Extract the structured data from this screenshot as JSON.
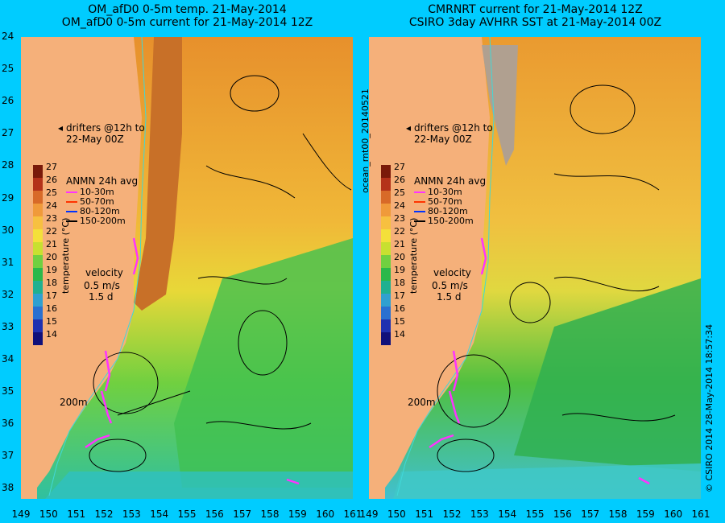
{
  "left_panel": {
    "title_line1": "OM_afD0 0-5m temp. 21-May-2014",
    "title_line2": "OM_afD0 0-5m current for 21-May-2014 12Z"
  },
  "right_panel": {
    "title_line1": "CMRNRT current for 21-May-2014 12Z",
    "title_line2": "CSIRO 3day AVHRR SST at 21-May-2014 00Z"
  },
  "latitude_ticks": [
    "24",
    "25",
    "26",
    "27",
    "28",
    "29",
    "30",
    "31",
    "32",
    "33",
    "34",
    "35",
    "36",
    "37",
    "38"
  ],
  "longitude_ticks": [
    "149",
    "150",
    "151",
    "152",
    "153",
    "154",
    "155",
    "156",
    "157",
    "158",
    "159",
    "160",
    "161"
  ],
  "colorbar": {
    "ticks": [
      "27",
      "26",
      "25",
      "24",
      "23",
      "22",
      "21",
      "20",
      "19",
      "18",
      "17",
      "16",
      "15",
      "14"
    ],
    "label": "temperature (°C)",
    "colors": [
      "#7a1a0a",
      "#b4321a",
      "#d86a28",
      "#f09a3a",
      "#f7c040",
      "#f4e03a",
      "#c8e030",
      "#70d040",
      "#2ab84a",
      "#20b090",
      "#30a0d0",
      "#2a70d0",
      "#2030b0",
      "#10107a"
    ]
  },
  "legend": {
    "drifters": "drifters @12h to",
    "drifters_line2": "22-May 00Z",
    "anmn": "ANMN 24h avg",
    "items": [
      {
        "label": "10-30m",
        "color": "#ff33ff"
      },
      {
        "label": "50-70m",
        "color": "#ff3300"
      },
      {
        "label": "80-120m",
        "color": "#0033ff"
      },
      {
        "label": "150-200m",
        "color": "#000000"
      }
    ],
    "velocity": "velocity",
    "velocity_scale": "0.5 m/s",
    "velocity_time": "1.5 d",
    "isobath": "200m"
  },
  "side_text": {
    "filename": "ocean_rnt00_20140521",
    "credit": "© CSIRO 2014   28-May-2014 18:57:34"
  },
  "colors": {
    "background": "#00ccff",
    "land": "#f5b07a",
    "warm_water": "#f0a030",
    "cool_water": "#20b040"
  }
}
